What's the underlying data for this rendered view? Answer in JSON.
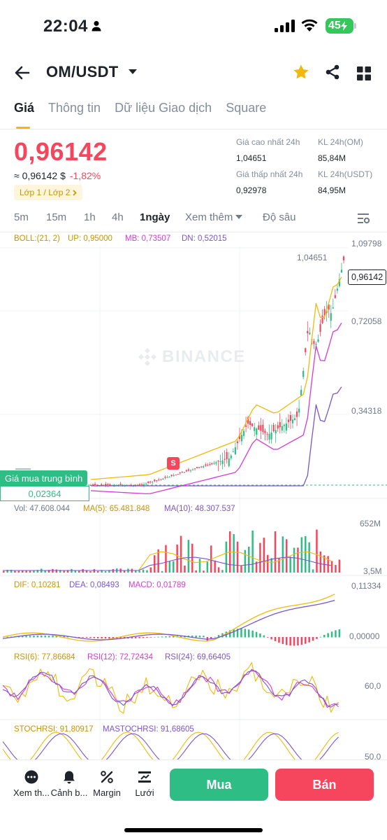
{
  "status_bar": {
    "time": "22:04",
    "battery": "45"
  },
  "header": {
    "title": "OM/USDT"
  },
  "tabs": [
    {
      "label": "Giá",
      "active": true
    },
    {
      "label": "Thông tin",
      "active": false
    },
    {
      "label": "Dữ liệu Giao dịch",
      "active": false
    },
    {
      "label": "Square",
      "active": false
    }
  ],
  "price": {
    "last": "0,96142",
    "usd_equiv": "≈ 0,96142 $",
    "change": "-1,82%",
    "layer_badge": "Lớp 1 / Lớp 2"
  },
  "stats": {
    "high_label": "Giá cao nhất 24h",
    "high_value": "1,04651",
    "low_label": "Giá thấp nhất 24h",
    "low_value": "0,92978",
    "vol_base_label": "KL 24h(OM)",
    "vol_base_value": "85,84M",
    "vol_quote_label": "KL 24h(USDT)",
    "vol_quote_value": "84,95M"
  },
  "intervals": [
    {
      "label": "5m",
      "active": false
    },
    {
      "label": "15m",
      "active": false
    },
    {
      "label": "1h",
      "active": false
    },
    {
      "label": "4h",
      "active": false
    },
    {
      "label": "1ngày",
      "active": true
    },
    {
      "label": "Xem thêm",
      "active": false
    },
    {
      "label": "Độ sâu",
      "active": false
    }
  ],
  "chart": {
    "watermark": "BINANCE",
    "boll": {
      "name": "BOLL:(21, 2)",
      "up": "UP: 0,95000",
      "mb": "MB: 0,73507",
      "dn": "DN: 0,52015"
    },
    "price_axis": [
      "1,09798",
      "0,72058",
      "0,34318"
    ],
    "high_marker": "1,04651",
    "current_price": "0,96142",
    "avg_buy_label": "Giá mua trung bình",
    "avg_buy_value": "0,02364",
    "sell_marker": "S",
    "vol": {
      "vol": "Vol: 47.608.044",
      "ma5": "MA(5): 65.481.848",
      "ma10": "MA(10): 48.307.537",
      "axis_top": "652M",
      "axis_bottom": "3,5M"
    },
    "macd": {
      "dif": "DIF: 0,10281",
      "dea": "DEA: 0,08493",
      "macd": "MACD: 0,01789",
      "axis_top": "0,11334",
      "axis_bottom": "0,00000"
    },
    "rsi": {
      "rsi6": "RSI(6): 77,86684",
      "rsi12": "RSI(12): 72,72434",
      "rsi24": "RSI(24): 69,66405",
      "axis": "60,0"
    },
    "stochrsi": {
      "stoch": "STOCHRSI: 91,80917",
      "mastoch": "MASTOCHRSI: 91,68605",
      "axis": "50,0"
    },
    "colors": {
      "up": "#2ebd85",
      "down": "#f6465d",
      "yellow": "#f0b90b",
      "magenta": "#d63ad6",
      "purple": "#7b55c9"
    }
  },
  "bottom_nav": [
    {
      "label": "Xem th...",
      "icon": "more-icon"
    },
    {
      "label": "Cảnh b...",
      "icon": "bell-icon"
    },
    {
      "label": "Margin",
      "icon": "percent-icon"
    },
    {
      "label": "Lưới",
      "icon": "grid-bot-icon"
    }
  ],
  "actions": {
    "buy": "Mua",
    "sell": "Bán"
  }
}
